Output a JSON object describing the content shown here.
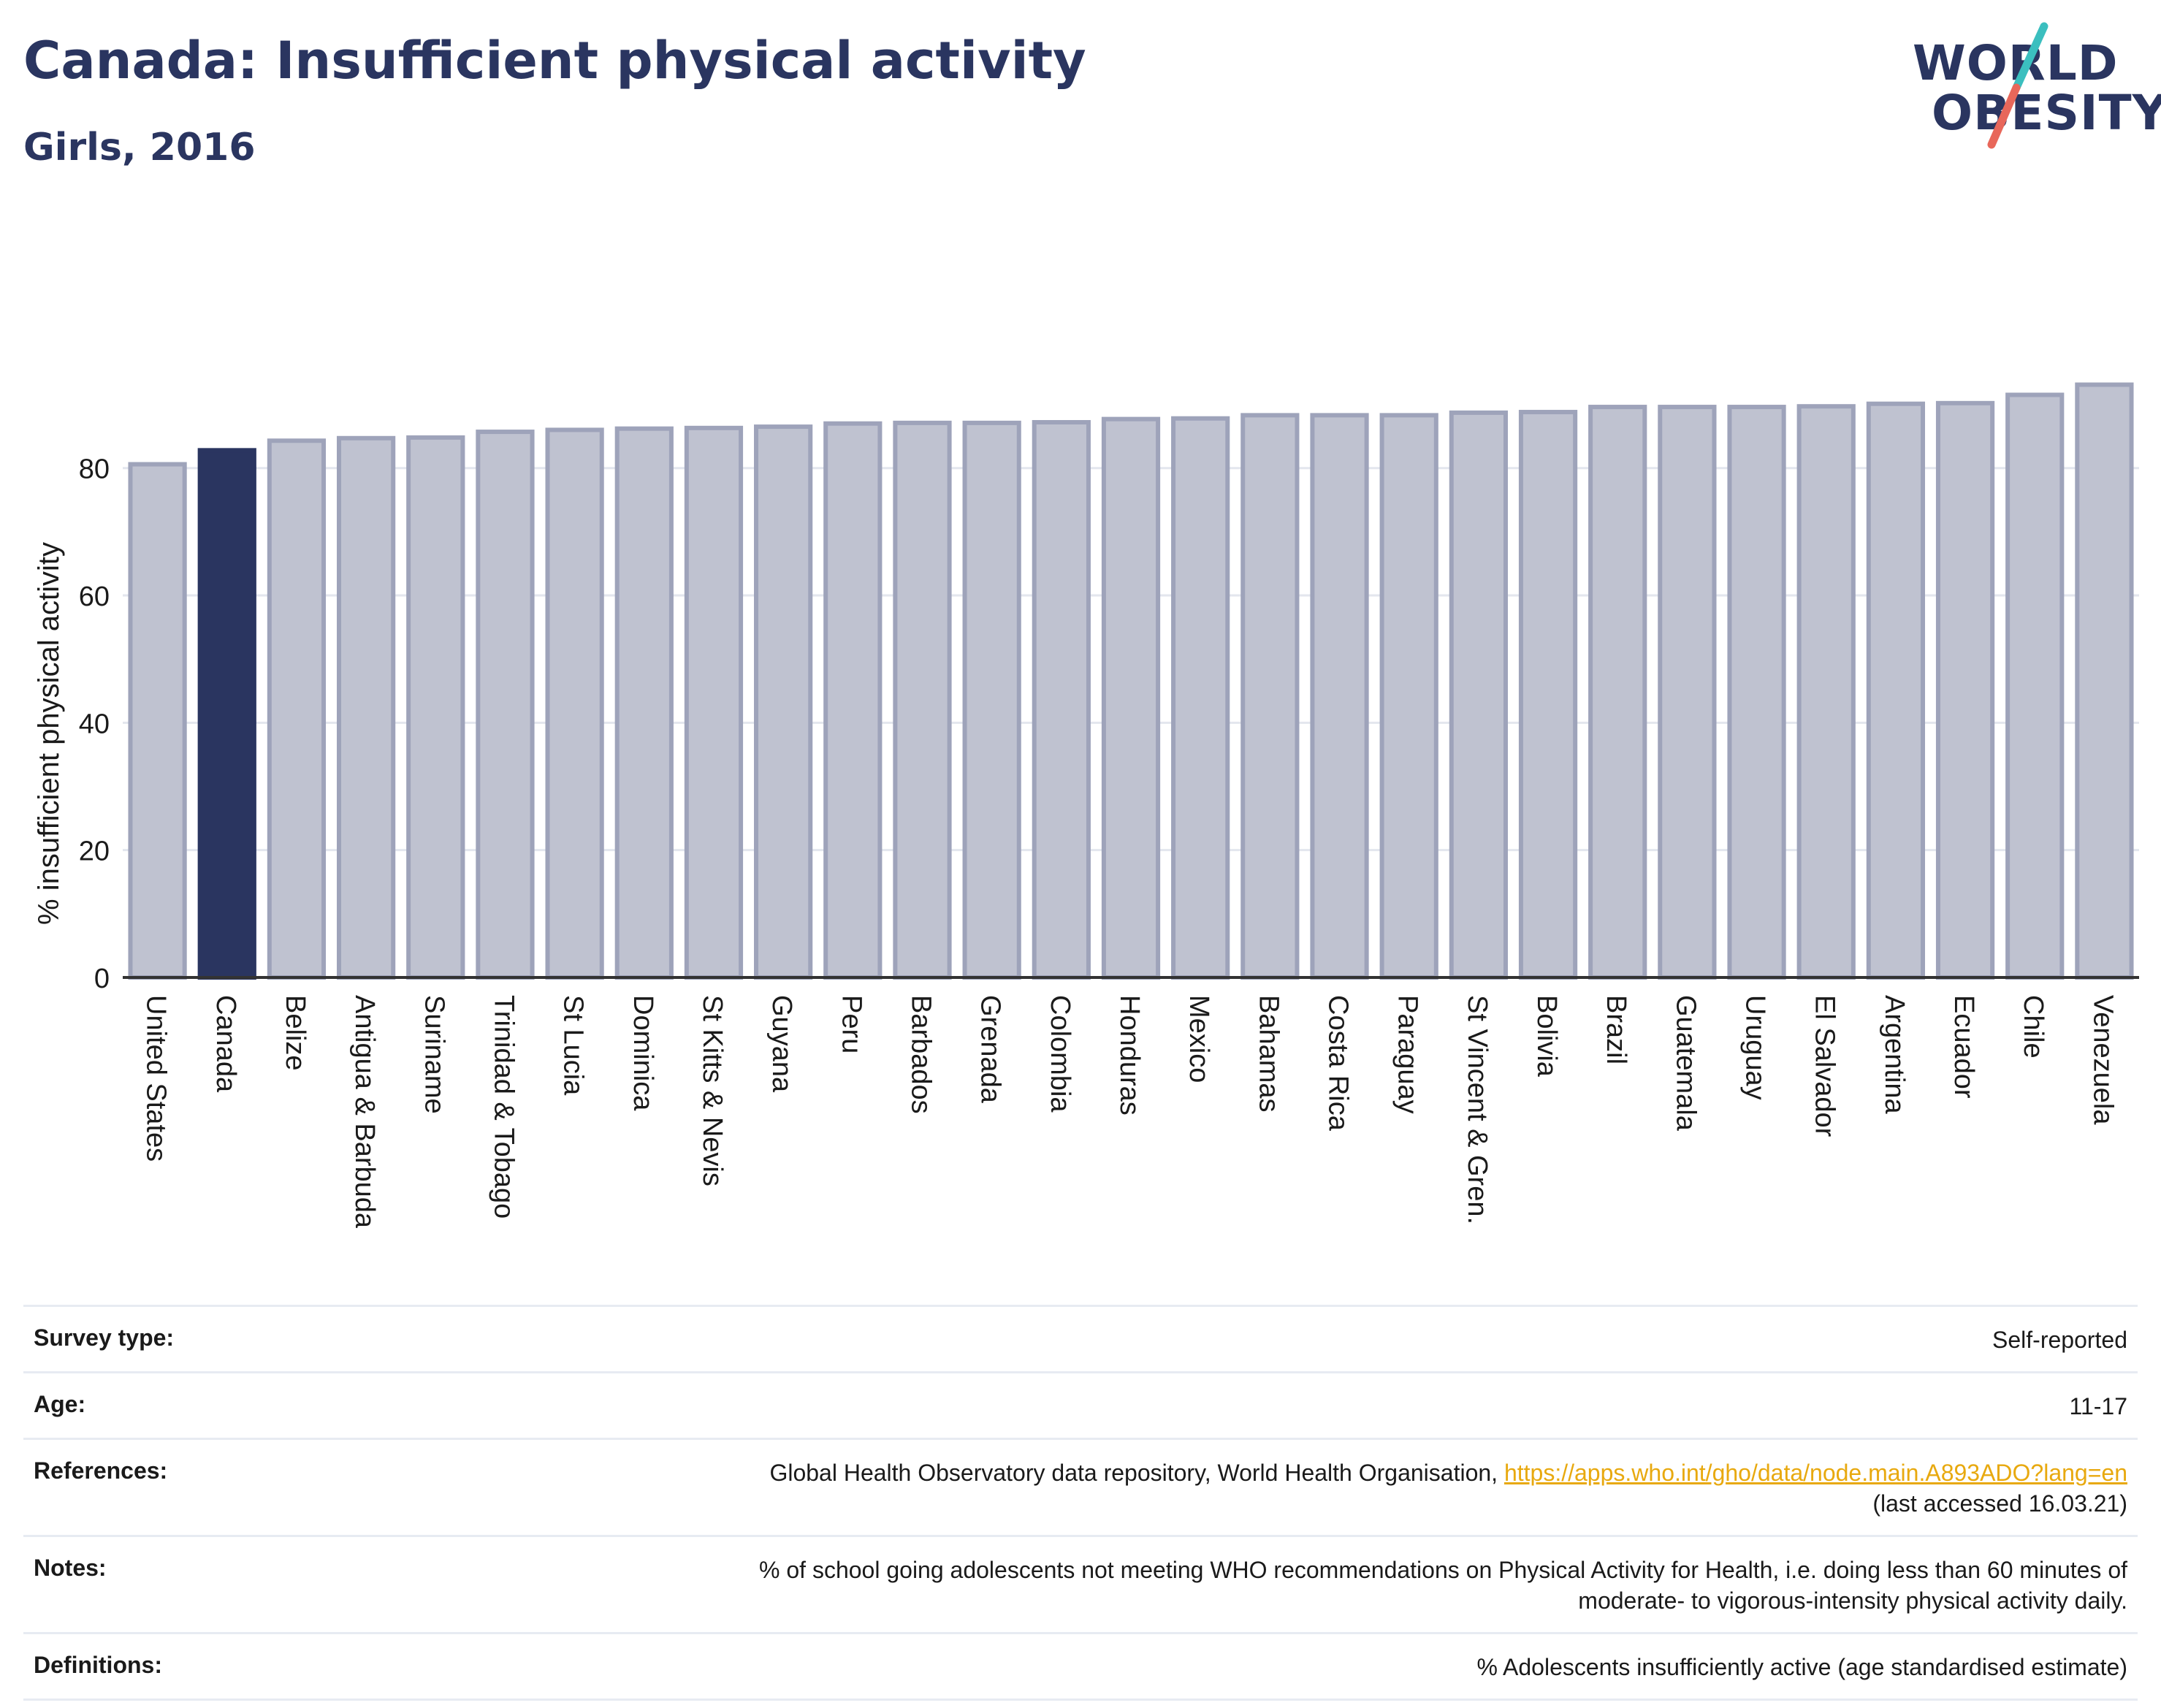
{
  "header": {
    "title": "Canada: Insufficient physical activity",
    "subtitle": "Girls, 2016"
  },
  "logo": {
    "line1": "WORLD",
    "line2": "OBESITY",
    "slash_colors": [
      "#3bbfbf",
      "#e8675a"
    ]
  },
  "colors": {
    "highlight": "#2a3560",
    "bar_fill": "#bfc2d0",
    "bar_edge": "#9ea3ba",
    "axis": "#333333",
    "grid": "#e3e6ee"
  },
  "chart_data": {
    "type": "bar",
    "ylabel": "% insufficient physical activity",
    "ylim": [
      0,
      95
    ],
    "yticks": [
      0,
      20,
      40,
      60,
      80
    ],
    "grid": true,
    "highlight": "Canada",
    "categories": [
      "United States",
      "Canada",
      "Belize",
      "Antigua & Barbuda",
      "Suriname",
      "Trinidad & Tobago",
      "St Lucia",
      "Dominica",
      "St Kitts & Nevis",
      "Guyana",
      "Peru",
      "Barbados",
      "Grenada",
      "Colombia",
      "Honduras",
      "Mexico",
      "Bahamas",
      "Costa Rica",
      "Paraguay",
      "St Vincent & Gren.",
      "Bolivia",
      "Brazil",
      "Guatemala",
      "Uruguay",
      "El Salvador",
      "Argentina",
      "Ecuador",
      "Chile",
      "Venezuela"
    ],
    "values": [
      80.6,
      82.8,
      84.3,
      84.7,
      84.8,
      85.7,
      86.0,
      86.2,
      86.3,
      86.5,
      87.0,
      87.1,
      87.1,
      87.2,
      87.7,
      87.8,
      88.3,
      88.3,
      88.3,
      88.7,
      88.8,
      89.6,
      89.6,
      89.6,
      89.7,
      90.1,
      90.2,
      91.5,
      93.1
    ]
  },
  "info_table": [
    {
      "label": "Survey type:",
      "value": "Self-reported"
    },
    {
      "label": "Age:",
      "value": "11-17"
    },
    {
      "label": "References:",
      "value_pre": "Global Health Observatory data repository, World Health Organisation, ",
      "link": "https://apps.who.int/gho/data/node.main.A893ADO?lang=en",
      "value_post": "(last accessed 16.03.21)"
    },
    {
      "label": "Notes:",
      "value_line1": "% of school going adolescents not meeting WHO recommendations on Physical Activity for Health, i.e. doing less than 60 minutes of",
      "value_line2": "moderate- to vigorous-intensity physical activity daily."
    },
    {
      "label": "Definitions:",
      "value": "% Adolescents insufficiently active (age standardised estimate)"
    }
  ]
}
